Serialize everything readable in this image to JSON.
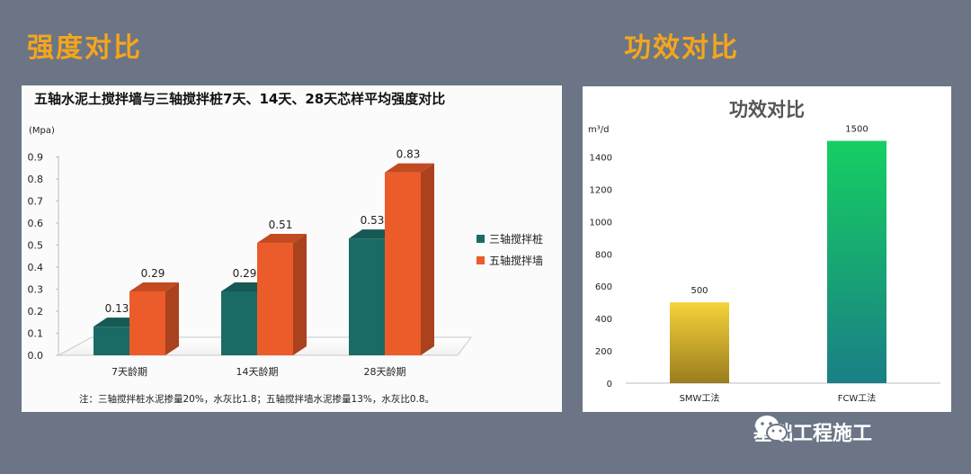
{
  "headings": {
    "left": "强度对比",
    "right": "功效对比"
  },
  "chart_data": [
    {
      "type": "bar",
      "title": "五轴水泥土搅拌墙与三轴搅拌桩7天、14天、28天芯样平均强度对比",
      "ylabel": "(Mpa)",
      "xlabel": "",
      "categories": [
        "7天龄期",
        "14天龄期",
        "28天龄期"
      ],
      "series": [
        {
          "name": "三轴搅拌桩",
          "values": [
            0.13,
            0.29,
            0.53
          ],
          "labels": [
            "0.13",
            "0.29",
            "0.53"
          ],
          "color": "#1a6b66"
        },
        {
          "name": "五轴搅拌墙",
          "values": [
            0.29,
            0.51,
            0.83
          ],
          "labels": [
            "0.29",
            "0.51",
            "0.83"
          ],
          "color": "#ec5b2a"
        }
      ],
      "ylim": [
        0,
        0.9
      ],
      "yticks": [
        "0.0",
        "0.1",
        "0.2",
        "0.3",
        "0.4",
        "0.5",
        "0.6",
        "0.7",
        "0.8",
        "0.9"
      ],
      "legend_position": "right",
      "grid": false,
      "three_d": true,
      "note": "注：三轴搅拌桩水泥掺量20%，水灰比1.8；五轴搅拌墙水泥掺量13%，水灰比0.8。"
    },
    {
      "type": "bar",
      "title": "功效对比",
      "ylabel": "m³/d",
      "xlabel": "",
      "categories": [
        "SMW工法",
        "FCW工法"
      ],
      "values": [
        500,
        1500
      ],
      "labels": [
        "500",
        "1500"
      ],
      "ylim": [
        0,
        1500
      ],
      "yticks": [
        "0",
        "200",
        "400",
        "600",
        "800",
        "1000",
        "1200",
        "1400"
      ],
      "bar_gradients": [
        {
          "top": "#f6d33a",
          "bottom": "#9a7d1e"
        },
        {
          "top": "#16cf63",
          "bottom": "#1a7f85"
        }
      ],
      "grid": false
    }
  ],
  "watermark": {
    "text": "基础工程施工",
    "icon": "wechat-icon"
  }
}
